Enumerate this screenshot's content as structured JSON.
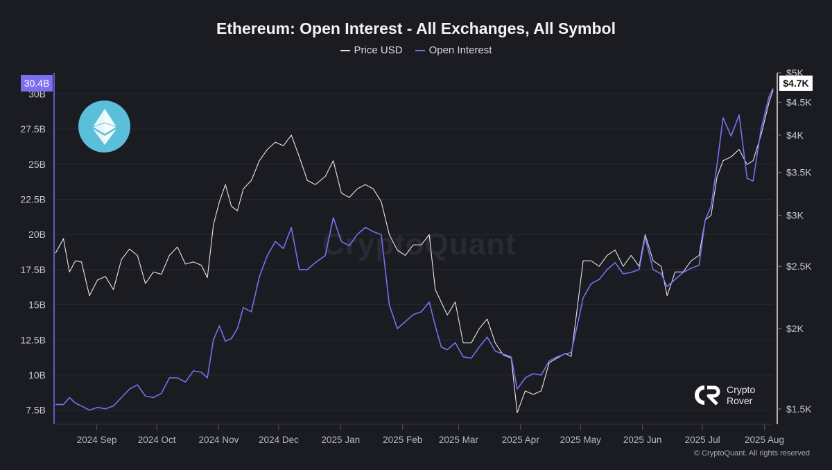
{
  "chart_data": {
    "type": "line",
    "title": "Ethereum: Open Interest - All Exchanges, All Symbol",
    "legend": [
      "Price USD",
      "Open Interest"
    ],
    "legend_position": "top-center",
    "x_ticks": [
      "2024 Sep",
      "2024 Oct",
      "2024 Nov",
      "2024 Dec",
      "2025 Jan",
      "2025 Feb",
      "2025 Mar",
      "2025 Apr",
      "2025 May",
      "2025 Jun",
      "2025 Jul",
      "2025 Aug"
    ],
    "left_axis": {
      "label": "",
      "ticks": [
        "7.5B",
        "10B",
        "12.5B",
        "15B",
        "17.5B",
        "20B",
        "22.5B",
        "25B",
        "27.5B",
        "30B"
      ],
      "range": [
        6.5,
        31.5
      ],
      "current_label": "30.4B"
    },
    "right_axis": {
      "label": "",
      "scale": "log",
      "ticks": [
        "$1.5K",
        "$2K",
        "$2.5K",
        "$3K",
        "$3.5K",
        "$4K",
        "$4.5K",
        "$5K"
      ],
      "tick_values": [
        1500,
        2000,
        2500,
        3000,
        3500,
        4000,
        4500,
        5000
      ],
      "current_label": "$4.7K"
    },
    "grid": true,
    "series": [
      {
        "name": "Price USD",
        "axis": "right",
        "color": "#e8e8ea",
        "points": [
          [
            "2024-08-20",
            2620
          ],
          [
            "2024-08-24",
            2760
          ],
          [
            "2024-08-27",
            2450
          ],
          [
            "2024-08-30",
            2550
          ],
          [
            "2024-09-02",
            2540
          ],
          [
            "2024-09-06",
            2250
          ],
          [
            "2024-09-10",
            2380
          ],
          [
            "2024-09-14",
            2410
          ],
          [
            "2024-09-18",
            2300
          ],
          [
            "2024-09-22",
            2560
          ],
          [
            "2024-09-26",
            2660
          ],
          [
            "2024-09-30",
            2600
          ],
          [
            "2024-10-04",
            2350
          ],
          [
            "2024-10-08",
            2450
          ],
          [
            "2024-10-12",
            2430
          ],
          [
            "2024-10-16",
            2600
          ],
          [
            "2024-10-20",
            2680
          ],
          [
            "2024-10-24",
            2520
          ],
          [
            "2024-10-28",
            2540
          ],
          [
            "2024-11-01",
            2510
          ],
          [
            "2024-11-04",
            2400
          ],
          [
            "2024-11-07",
            2900
          ],
          [
            "2024-11-10",
            3150
          ],
          [
            "2024-11-13",
            3350
          ],
          [
            "2024-11-16",
            3100
          ],
          [
            "2024-11-19",
            3050
          ],
          [
            "2024-11-22",
            3300
          ],
          [
            "2024-11-26",
            3400
          ],
          [
            "2024-11-30",
            3650
          ],
          [
            "2024-12-04",
            3800
          ],
          [
            "2024-12-08",
            3900
          ],
          [
            "2024-12-12",
            3850
          ],
          [
            "2024-12-16",
            4000
          ],
          [
            "2024-12-20",
            3700
          ],
          [
            "2024-12-24",
            3400
          ],
          [
            "2024-12-28",
            3350
          ],
          [
            "2025-01-02",
            3450
          ],
          [
            "2025-01-06",
            3650
          ],
          [
            "2025-01-10",
            3250
          ],
          [
            "2025-01-14",
            3200
          ],
          [
            "2025-01-18",
            3300
          ],
          [
            "2025-01-22",
            3350
          ],
          [
            "2025-01-26",
            3300
          ],
          [
            "2025-01-30",
            3150
          ],
          [
            "2025-02-03",
            2800
          ],
          [
            "2025-02-07",
            2650
          ],
          [
            "2025-02-11",
            2600
          ],
          [
            "2025-02-15",
            2700
          ],
          [
            "2025-02-19",
            2700
          ],
          [
            "2025-02-23",
            2800
          ],
          [
            "2025-02-26",
            2300
          ],
          [
            "2025-03-01",
            2200
          ],
          [
            "2025-03-04",
            2100
          ],
          [
            "2025-03-08",
            2200
          ],
          [
            "2025-03-12",
            1900
          ],
          [
            "2025-03-16",
            1900
          ],
          [
            "2025-03-20",
            2000
          ],
          [
            "2025-03-24",
            2070
          ],
          [
            "2025-03-28",
            1900
          ],
          [
            "2025-04-01",
            1820
          ],
          [
            "2025-04-05",
            1800
          ],
          [
            "2025-04-08",
            1480
          ],
          [
            "2025-04-12",
            1600
          ],
          [
            "2025-04-16",
            1580
          ],
          [
            "2025-04-20",
            1600
          ],
          [
            "2025-04-24",
            1770
          ],
          [
            "2025-04-28",
            1800
          ],
          [
            "2025-05-02",
            1830
          ],
          [
            "2025-05-05",
            1810
          ],
          [
            "2025-05-08",
            2150
          ],
          [
            "2025-05-11",
            2550
          ],
          [
            "2025-05-15",
            2550
          ],
          [
            "2025-05-19",
            2500
          ],
          [
            "2025-05-23",
            2600
          ],
          [
            "2025-05-27",
            2650
          ],
          [
            "2025-05-31",
            2500
          ],
          [
            "2025-06-04",
            2600
          ],
          [
            "2025-06-08",
            2500
          ],
          [
            "2025-06-11",
            2800
          ],
          [
            "2025-06-15",
            2550
          ],
          [
            "2025-06-19",
            2500
          ],
          [
            "2025-06-22",
            2250
          ],
          [
            "2025-06-26",
            2450
          ],
          [
            "2025-06-30",
            2450
          ],
          [
            "2025-07-04",
            2550
          ],
          [
            "2025-07-08",
            2600
          ],
          [
            "2025-07-11",
            2950
          ],
          [
            "2025-07-14",
            3000
          ],
          [
            "2025-07-17",
            3450
          ],
          [
            "2025-07-20",
            3650
          ],
          [
            "2025-07-24",
            3700
          ],
          [
            "2025-07-28",
            3800
          ],
          [
            "2025-08-01",
            3600
          ],
          [
            "2025-08-04",
            3650
          ],
          [
            "2025-08-08",
            4000
          ],
          [
            "2025-08-12",
            4500
          ],
          [
            "2025-08-14",
            4700
          ]
        ]
      },
      {
        "name": "Open Interest",
        "axis": "left",
        "unit": "B",
        "color": "#7b6ff0",
        "points": [
          [
            "2024-08-20",
            7.9
          ],
          [
            "2024-08-24",
            7.9
          ],
          [
            "2024-08-27",
            8.4
          ],
          [
            "2024-08-30",
            8.0
          ],
          [
            "2024-09-02",
            7.8
          ],
          [
            "2024-09-06",
            7.5
          ],
          [
            "2024-09-10",
            7.7
          ],
          [
            "2024-09-14",
            7.6
          ],
          [
            "2024-09-18",
            7.8
          ],
          [
            "2024-09-22",
            8.4
          ],
          [
            "2024-09-26",
            9.0
          ],
          [
            "2024-09-30",
            9.3
          ],
          [
            "2024-10-04",
            8.5
          ],
          [
            "2024-10-08",
            8.4
          ],
          [
            "2024-10-12",
            8.7
          ],
          [
            "2024-10-16",
            9.8
          ],
          [
            "2024-10-20",
            9.8
          ],
          [
            "2024-10-24",
            9.5
          ],
          [
            "2024-10-28",
            10.3
          ],
          [
            "2024-11-01",
            10.2
          ],
          [
            "2024-11-04",
            9.8
          ],
          [
            "2024-11-07",
            12.5
          ],
          [
            "2024-11-10",
            13.5
          ],
          [
            "2024-11-13",
            12.4
          ],
          [
            "2024-11-16",
            12.6
          ],
          [
            "2024-11-19",
            13.3
          ],
          [
            "2024-11-22",
            14.8
          ],
          [
            "2024-11-26",
            14.5
          ],
          [
            "2024-11-30",
            17.0
          ],
          [
            "2024-12-04",
            18.5
          ],
          [
            "2024-12-08",
            19.5
          ],
          [
            "2024-12-12",
            19.0
          ],
          [
            "2024-12-16",
            20.5
          ],
          [
            "2024-12-20",
            17.5
          ],
          [
            "2024-12-24",
            17.5
          ],
          [
            "2024-12-28",
            18.0
          ],
          [
            "2025-01-02",
            18.5
          ],
          [
            "2025-01-06",
            21.2
          ],
          [
            "2025-01-10",
            19.5
          ],
          [
            "2025-01-14",
            19.2
          ],
          [
            "2025-01-18",
            20.0
          ],
          [
            "2025-01-22",
            20.5
          ],
          [
            "2025-01-26",
            20.2
          ],
          [
            "2025-01-30",
            20.0
          ],
          [
            "2025-02-03",
            15.0
          ],
          [
            "2025-02-07",
            13.3
          ],
          [
            "2025-02-11",
            13.8
          ],
          [
            "2025-02-15",
            14.3
          ],
          [
            "2025-02-19",
            14.5
          ],
          [
            "2025-02-23",
            15.2
          ],
          [
            "2025-02-26",
            13.5
          ],
          [
            "2025-03-01",
            12.0
          ],
          [
            "2025-03-04",
            11.8
          ],
          [
            "2025-03-08",
            12.3
          ],
          [
            "2025-03-12",
            11.3
          ],
          [
            "2025-03-16",
            11.2
          ],
          [
            "2025-03-20",
            12.0
          ],
          [
            "2025-03-24",
            12.7
          ],
          [
            "2025-03-28",
            11.7
          ],
          [
            "2025-04-01",
            11.5
          ],
          [
            "2025-04-05",
            11.3
          ],
          [
            "2025-04-08",
            9.0
          ],
          [
            "2025-04-12",
            9.8
          ],
          [
            "2025-04-16",
            10.1
          ],
          [
            "2025-04-20",
            10.0
          ],
          [
            "2025-04-24",
            11.0
          ],
          [
            "2025-04-28",
            11.3
          ],
          [
            "2025-05-02",
            11.5
          ],
          [
            "2025-05-05",
            11.6
          ],
          [
            "2025-05-08",
            13.5
          ],
          [
            "2025-05-11",
            15.5
          ],
          [
            "2025-05-15",
            16.5
          ],
          [
            "2025-05-19",
            16.8
          ],
          [
            "2025-05-23",
            17.5
          ],
          [
            "2025-05-27",
            18.0
          ],
          [
            "2025-05-31",
            17.2
          ],
          [
            "2025-06-04",
            17.3
          ],
          [
            "2025-06-08",
            17.5
          ],
          [
            "2025-06-11",
            19.8
          ],
          [
            "2025-06-15",
            17.5
          ],
          [
            "2025-06-19",
            17.2
          ],
          [
            "2025-06-22",
            16.3
          ],
          [
            "2025-06-26",
            16.8
          ],
          [
            "2025-06-30",
            17.3
          ],
          [
            "2025-07-04",
            17.6
          ],
          [
            "2025-07-08",
            17.8
          ],
          [
            "2025-07-11",
            21.0
          ],
          [
            "2025-07-14",
            22.0
          ],
          [
            "2025-07-17",
            25.0
          ],
          [
            "2025-07-20",
            28.3
          ],
          [
            "2025-07-24",
            27.0
          ],
          [
            "2025-07-28",
            28.5
          ],
          [
            "2025-08-01",
            24.0
          ],
          [
            "2025-08-04",
            23.8
          ],
          [
            "2025-08-08",
            27.5
          ],
          [
            "2025-08-12",
            29.8
          ],
          [
            "2025-08-14",
            30.4
          ]
        ]
      }
    ]
  },
  "branding": {
    "brand_line1": "Crypto",
    "brand_line2": "Rover",
    "watermark": "CryptoQuant",
    "copyright": "© CryptoQuant. All rights reserved",
    "logo_icon": "ethereum-icon",
    "logo_color": "#5bbfd9"
  }
}
